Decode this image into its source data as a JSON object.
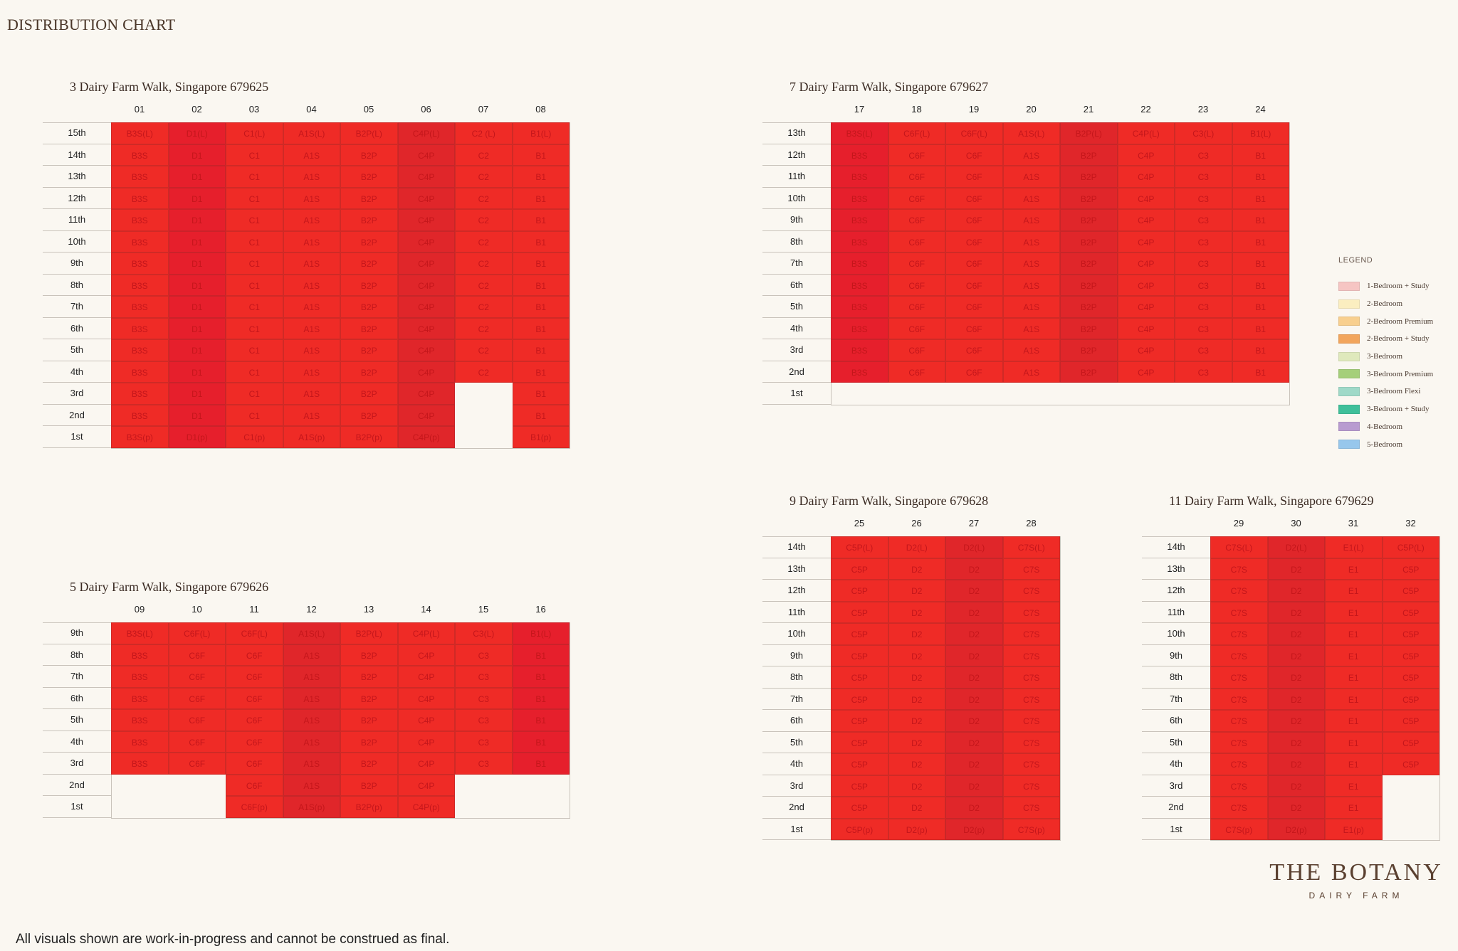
{
  "page_title": "DISTRIBUTION CHART",
  "disclaimer": "All visuals shown are work-in-progress and cannot be construed as final.",
  "brand": {
    "name": "THE BOTANY",
    "sub": "DAIRY FARM"
  },
  "legend": {
    "title": "LEGEND",
    "items": [
      {
        "label": "1-Bedroom + Study",
        "color": "#f6c5c3"
      },
      {
        "label": "2-Bedroom",
        "color": "#fbeec0"
      },
      {
        "label": "2-Bedroom Premium",
        "color": "#f8cf8e"
      },
      {
        "label": "2-Bedroom + Study",
        "color": "#f2a55c"
      },
      {
        "label": "3-Bedroom",
        "color": "#dfe9bc"
      },
      {
        "label": "3-Bedroom Premium",
        "color": "#a5cf7a"
      },
      {
        "label": "3-Bedroom Flexi",
        "color": "#9fd9c8"
      },
      {
        "label": "3-Bedroom + Study",
        "color": "#3fbf9a"
      },
      {
        "label": "4-Bedroom",
        "color": "#b89bd0"
      },
      {
        "label": "5-Bedroom",
        "color": "#97c7ec"
      }
    ]
  },
  "chart_data": {
    "type": "table",
    "cell_color": "#ef2b26",
    "blocks": [
      {
        "title": "3 Dairy Farm Walk, Singapore 679625",
        "stacks": [
          "01",
          "02",
          "03",
          "04",
          "05",
          "06",
          "07",
          "08"
        ],
        "floors": [
          "15th",
          "14th",
          "13th",
          "12th",
          "11th",
          "10th",
          "9th",
          "8th",
          "7th",
          "6th",
          "5th",
          "4th",
          "3rd",
          "2nd",
          "1st"
        ],
        "cells": [
          [
            "B3S(L)",
            "D1(L)",
            "C1(L)",
            "A1S(L)",
            "B2P(L)",
            "C4P(L)",
            "C2 (L)",
            "B1(L)"
          ],
          [
            "B3S",
            "D1",
            "C1",
            "A1S",
            "B2P",
            "C4P",
            "C2",
            "B1"
          ],
          [
            "B3S",
            "D1",
            "C1",
            "A1S",
            "B2P",
            "C4P",
            "C2",
            "B1"
          ],
          [
            "B3S",
            "D1",
            "C1",
            "A1S",
            "B2P",
            "C4P",
            "C2",
            "B1"
          ],
          [
            "B3S",
            "D1",
            "C1",
            "A1S",
            "B2P",
            "C4P",
            "C2",
            "B1"
          ],
          [
            "B3S",
            "D1",
            "C1",
            "A1S",
            "B2P",
            "C4P",
            "C2",
            "B1"
          ],
          [
            "B3S",
            "D1",
            "C1",
            "A1S",
            "B2P",
            "C4P",
            "C2",
            "B1"
          ],
          [
            "B3S",
            "D1",
            "C1",
            "A1S",
            "B2P",
            "C4P",
            "C2",
            "B1"
          ],
          [
            "B3S",
            "D1",
            "C1",
            "A1S",
            "B2P",
            "C4P",
            "C2",
            "B1"
          ],
          [
            "B3S",
            "D1",
            "C1",
            "A1S",
            "B2P",
            "C4P",
            "C2",
            "B1"
          ],
          [
            "B3S",
            "D1",
            "C1",
            "A1S",
            "B2P",
            "C4P",
            "C2",
            "B1"
          ],
          [
            "B3S",
            "D1",
            "C1",
            "A1S",
            "B2P",
            "C4P",
            "C2",
            "B1"
          ],
          [
            "B3S",
            "D1",
            "C1",
            "A1S",
            "B2P",
            "C4P",
            "",
            "B1"
          ],
          [
            "B3S",
            "D1",
            "C1",
            "A1S",
            "B2P",
            "C4P",
            "",
            "B1"
          ],
          [
            "B3S(p)",
            "D1(p)",
            "C1(p)",
            "A1S(p)",
            "B2P(p)",
            "C4P(p)",
            "",
            "B1(p)"
          ]
        ]
      },
      {
        "title": "7 Dairy Farm Walk, Singapore 679627",
        "stacks": [
          "17",
          "18",
          "19",
          "20",
          "21",
          "22",
          "23",
          "24"
        ],
        "floors": [
          "13th",
          "12th",
          "11th",
          "10th",
          "9th",
          "8th",
          "7th",
          "6th",
          "5th",
          "4th",
          "3rd",
          "2nd",
          "1st"
        ],
        "cells": [
          [
            "B3S(L)",
            "C6F(L)",
            "C6F(L)",
            "A1S(L)",
            "B2P(L)",
            "C4P(L)",
            "C3(L)",
            "B1(L)"
          ],
          [
            "B3S",
            "C6F",
            "C6F",
            "A1S",
            "B2P",
            "C4P",
            "C3",
            "B1"
          ],
          [
            "B3S",
            "C6F",
            "C6F",
            "A1S",
            "B2P",
            "C4P",
            "C3",
            "B1"
          ],
          [
            "B3S",
            "C6F",
            "C6F",
            "A1S",
            "B2P",
            "C4P",
            "C3",
            "B1"
          ],
          [
            "B3S",
            "C6F",
            "C6F",
            "A1S",
            "B2P",
            "C4P",
            "C3",
            "B1"
          ],
          [
            "B3S",
            "C6F",
            "C6F",
            "A1S",
            "B2P",
            "C4P",
            "C3",
            "B1"
          ],
          [
            "B3S",
            "C6F",
            "C6F",
            "A1S",
            "B2P",
            "C4P",
            "C3",
            "B1"
          ],
          [
            "B3S",
            "C6F",
            "C6F",
            "A1S",
            "B2P",
            "C4P",
            "C3",
            "B1"
          ],
          [
            "B3S",
            "C6F",
            "C6F",
            "A1S",
            "B2P",
            "C4P",
            "C3",
            "B1"
          ],
          [
            "B3S",
            "C6F",
            "C6F",
            "A1S",
            "B2P",
            "C4P",
            "C3",
            "B1"
          ],
          [
            "B3S",
            "C6F",
            "C6F",
            "A1S",
            "B2P",
            "C4P",
            "C3",
            "B1"
          ],
          [
            "B3S",
            "C6F",
            "C6F",
            "A1S",
            "B2P",
            "C4P",
            "C3",
            "B1"
          ],
          [
            "",
            "",
            "",
            "",
            "",
            "",
            "",
            ""
          ]
        ]
      },
      {
        "title": "5 Dairy Farm Walk, Singapore 679626",
        "stacks": [
          "09",
          "10",
          "11",
          "12",
          "13",
          "14",
          "15",
          "16"
        ],
        "floors": [
          "9th",
          "8th",
          "7th",
          "6th",
          "5th",
          "4th",
          "3rd",
          "2nd",
          "1st"
        ],
        "cells": [
          [
            "B3S(L)",
            "C6F(L)",
            "C6F(L)",
            "A1S(L)",
            "B2P(L)",
            "C4P(L)",
            "C3(L)",
            "B1(L)"
          ],
          [
            "B3S",
            "C6F",
            "C6F",
            "A1S",
            "B2P",
            "C4P",
            "C3",
            "B1"
          ],
          [
            "B3S",
            "C6F",
            "C6F",
            "A1S",
            "B2P",
            "C4P",
            "C3",
            "B1"
          ],
          [
            "B3S",
            "C6F",
            "C6F",
            "A1S",
            "B2P",
            "C4P",
            "C3",
            "B1"
          ],
          [
            "B3S",
            "C6F",
            "C6F",
            "A1S",
            "B2P",
            "C4P",
            "C3",
            "B1"
          ],
          [
            "B3S",
            "C6F",
            "C6F",
            "A1S",
            "B2P",
            "C4P",
            "C3",
            "B1"
          ],
          [
            "B3S",
            "C6F",
            "C6F",
            "A1S",
            "B2P",
            "C4P",
            "C3",
            "B1"
          ],
          [
            "",
            "",
            "C6F",
            "A1S",
            "B2P",
            "C4P",
            "",
            ""
          ],
          [
            "",
            "",
            "C6F(p)",
            "A1S(p)",
            "B2P(p)",
            "C4P(p)",
            "",
            ""
          ]
        ]
      },
      {
        "title": "9 Dairy Farm Walk, Singapore 679628",
        "stacks": [
          "25",
          "26",
          "27",
          "28"
        ],
        "floors": [
          "14th",
          "13th",
          "12th",
          "11th",
          "10th",
          "9th",
          "8th",
          "7th",
          "6th",
          "5th",
          "4th",
          "3rd",
          "2nd",
          "1st"
        ],
        "cells": [
          [
            "C5P(L)",
            "D2(L)",
            "D2(L)",
            "C7S(L)"
          ],
          [
            "C5P",
            "D2",
            "D2",
            "C7S"
          ],
          [
            "C5P",
            "D2",
            "D2",
            "C7S"
          ],
          [
            "C5P",
            "D2",
            "D2",
            "C7S"
          ],
          [
            "C5P",
            "D2",
            "D2",
            "C7S"
          ],
          [
            "C5P",
            "D2",
            "D2",
            "C7S"
          ],
          [
            "C5P",
            "D2",
            "D2",
            "C7S"
          ],
          [
            "C5P",
            "D2",
            "D2",
            "C7S"
          ],
          [
            "C5P",
            "D2",
            "D2",
            "C7S"
          ],
          [
            "C5P",
            "D2",
            "D2",
            "C7S"
          ],
          [
            "C5P",
            "D2",
            "D2",
            "C7S"
          ],
          [
            "C5P",
            "D2",
            "D2",
            "C7S"
          ],
          [
            "C5P",
            "D2",
            "D2",
            "C7S"
          ],
          [
            "C5P(p)",
            "D2(p)",
            "D2(p)",
            "C7S(p)"
          ]
        ]
      },
      {
        "title": "11 Dairy Farm Walk, Singapore 679629",
        "stacks": [
          "29",
          "30",
          "31",
          "32"
        ],
        "floors": [
          "14th",
          "13th",
          "12th",
          "11th",
          "10th",
          "9th",
          "8th",
          "7th",
          "6th",
          "5th",
          "4th",
          "3rd",
          "2nd",
          "1st"
        ],
        "cells": [
          [
            "C7S(L)",
            "D2(L)",
            "E1(L)",
            "C5P(L)"
          ],
          [
            "C7S",
            "D2",
            "E1",
            "C5P"
          ],
          [
            "C7S",
            "D2",
            "E1",
            "C5P"
          ],
          [
            "C7S",
            "D2",
            "E1",
            "C5P"
          ],
          [
            "C7S",
            "D2",
            "E1",
            "C5P"
          ],
          [
            "C7S",
            "D2",
            "E1",
            "C5P"
          ],
          [
            "C7S",
            "D2",
            "E1",
            "C5P"
          ],
          [
            "C7S",
            "D2",
            "E1",
            "C5P"
          ],
          [
            "C7S",
            "D2",
            "E1",
            "C5P"
          ],
          [
            "C7S",
            "D2",
            "E1",
            "C5P"
          ],
          [
            "C7S",
            "D2",
            "E1",
            "C5P"
          ],
          [
            "C7S",
            "D2",
            "E1",
            ""
          ],
          [
            "C7S",
            "D2",
            "E1",
            ""
          ],
          [
            "C7S(p)",
            "D2(p)",
            "E1(p)",
            ""
          ]
        ]
      }
    ]
  }
}
